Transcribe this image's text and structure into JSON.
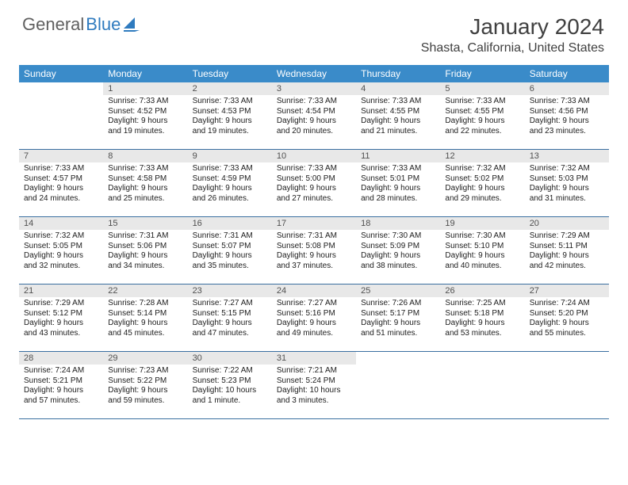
{
  "brand": {
    "part1": "General",
    "part2": "Blue"
  },
  "title": "January 2024",
  "location": "Shasta, California, United States",
  "colors": {
    "header_bg": "#3a8bc9",
    "header_text": "#ffffff",
    "daynum_bg": "#e8e8e8",
    "border": "#3a6fa0",
    "body_text": "#202020",
    "title_text": "#404040",
    "brand_gray": "#606060",
    "brand_blue": "#2f7bbf"
  },
  "day_labels": [
    "Sunday",
    "Monday",
    "Tuesday",
    "Wednesday",
    "Thursday",
    "Friday",
    "Saturday"
  ],
  "weeks": [
    [
      {
        "n": "",
        "sr": "",
        "ss": "",
        "dl": ""
      },
      {
        "n": "1",
        "sr": "Sunrise: 7:33 AM",
        "ss": "Sunset: 4:52 PM",
        "dl": "Daylight: 9 hours and 19 minutes."
      },
      {
        "n": "2",
        "sr": "Sunrise: 7:33 AM",
        "ss": "Sunset: 4:53 PM",
        "dl": "Daylight: 9 hours and 19 minutes."
      },
      {
        "n": "3",
        "sr": "Sunrise: 7:33 AM",
        "ss": "Sunset: 4:54 PM",
        "dl": "Daylight: 9 hours and 20 minutes."
      },
      {
        "n": "4",
        "sr": "Sunrise: 7:33 AM",
        "ss": "Sunset: 4:55 PM",
        "dl": "Daylight: 9 hours and 21 minutes."
      },
      {
        "n": "5",
        "sr": "Sunrise: 7:33 AM",
        "ss": "Sunset: 4:55 PM",
        "dl": "Daylight: 9 hours and 22 minutes."
      },
      {
        "n": "6",
        "sr": "Sunrise: 7:33 AM",
        "ss": "Sunset: 4:56 PM",
        "dl": "Daylight: 9 hours and 23 minutes."
      }
    ],
    [
      {
        "n": "7",
        "sr": "Sunrise: 7:33 AM",
        "ss": "Sunset: 4:57 PM",
        "dl": "Daylight: 9 hours and 24 minutes."
      },
      {
        "n": "8",
        "sr": "Sunrise: 7:33 AM",
        "ss": "Sunset: 4:58 PM",
        "dl": "Daylight: 9 hours and 25 minutes."
      },
      {
        "n": "9",
        "sr": "Sunrise: 7:33 AM",
        "ss": "Sunset: 4:59 PM",
        "dl": "Daylight: 9 hours and 26 minutes."
      },
      {
        "n": "10",
        "sr": "Sunrise: 7:33 AM",
        "ss": "Sunset: 5:00 PM",
        "dl": "Daylight: 9 hours and 27 minutes."
      },
      {
        "n": "11",
        "sr": "Sunrise: 7:33 AM",
        "ss": "Sunset: 5:01 PM",
        "dl": "Daylight: 9 hours and 28 minutes."
      },
      {
        "n": "12",
        "sr": "Sunrise: 7:32 AM",
        "ss": "Sunset: 5:02 PM",
        "dl": "Daylight: 9 hours and 29 minutes."
      },
      {
        "n": "13",
        "sr": "Sunrise: 7:32 AM",
        "ss": "Sunset: 5:03 PM",
        "dl": "Daylight: 9 hours and 31 minutes."
      }
    ],
    [
      {
        "n": "14",
        "sr": "Sunrise: 7:32 AM",
        "ss": "Sunset: 5:05 PM",
        "dl": "Daylight: 9 hours and 32 minutes."
      },
      {
        "n": "15",
        "sr": "Sunrise: 7:31 AM",
        "ss": "Sunset: 5:06 PM",
        "dl": "Daylight: 9 hours and 34 minutes."
      },
      {
        "n": "16",
        "sr": "Sunrise: 7:31 AM",
        "ss": "Sunset: 5:07 PM",
        "dl": "Daylight: 9 hours and 35 minutes."
      },
      {
        "n": "17",
        "sr": "Sunrise: 7:31 AM",
        "ss": "Sunset: 5:08 PM",
        "dl": "Daylight: 9 hours and 37 minutes."
      },
      {
        "n": "18",
        "sr": "Sunrise: 7:30 AM",
        "ss": "Sunset: 5:09 PM",
        "dl": "Daylight: 9 hours and 38 minutes."
      },
      {
        "n": "19",
        "sr": "Sunrise: 7:30 AM",
        "ss": "Sunset: 5:10 PM",
        "dl": "Daylight: 9 hours and 40 minutes."
      },
      {
        "n": "20",
        "sr": "Sunrise: 7:29 AM",
        "ss": "Sunset: 5:11 PM",
        "dl": "Daylight: 9 hours and 42 minutes."
      }
    ],
    [
      {
        "n": "21",
        "sr": "Sunrise: 7:29 AM",
        "ss": "Sunset: 5:12 PM",
        "dl": "Daylight: 9 hours and 43 minutes."
      },
      {
        "n": "22",
        "sr": "Sunrise: 7:28 AM",
        "ss": "Sunset: 5:14 PM",
        "dl": "Daylight: 9 hours and 45 minutes."
      },
      {
        "n": "23",
        "sr": "Sunrise: 7:27 AM",
        "ss": "Sunset: 5:15 PM",
        "dl": "Daylight: 9 hours and 47 minutes."
      },
      {
        "n": "24",
        "sr": "Sunrise: 7:27 AM",
        "ss": "Sunset: 5:16 PM",
        "dl": "Daylight: 9 hours and 49 minutes."
      },
      {
        "n": "25",
        "sr": "Sunrise: 7:26 AM",
        "ss": "Sunset: 5:17 PM",
        "dl": "Daylight: 9 hours and 51 minutes."
      },
      {
        "n": "26",
        "sr": "Sunrise: 7:25 AM",
        "ss": "Sunset: 5:18 PM",
        "dl": "Daylight: 9 hours and 53 minutes."
      },
      {
        "n": "27",
        "sr": "Sunrise: 7:24 AM",
        "ss": "Sunset: 5:20 PM",
        "dl": "Daylight: 9 hours and 55 minutes."
      }
    ],
    [
      {
        "n": "28",
        "sr": "Sunrise: 7:24 AM",
        "ss": "Sunset: 5:21 PM",
        "dl": "Daylight: 9 hours and 57 minutes."
      },
      {
        "n": "29",
        "sr": "Sunrise: 7:23 AM",
        "ss": "Sunset: 5:22 PM",
        "dl": "Daylight: 9 hours and 59 minutes."
      },
      {
        "n": "30",
        "sr": "Sunrise: 7:22 AM",
        "ss": "Sunset: 5:23 PM",
        "dl": "Daylight: 10 hours and 1 minute."
      },
      {
        "n": "31",
        "sr": "Sunrise: 7:21 AM",
        "ss": "Sunset: 5:24 PM",
        "dl": "Daylight: 10 hours and 3 minutes."
      },
      {
        "n": "",
        "sr": "",
        "ss": "",
        "dl": ""
      },
      {
        "n": "",
        "sr": "",
        "ss": "",
        "dl": ""
      },
      {
        "n": "",
        "sr": "",
        "ss": "",
        "dl": ""
      }
    ]
  ]
}
